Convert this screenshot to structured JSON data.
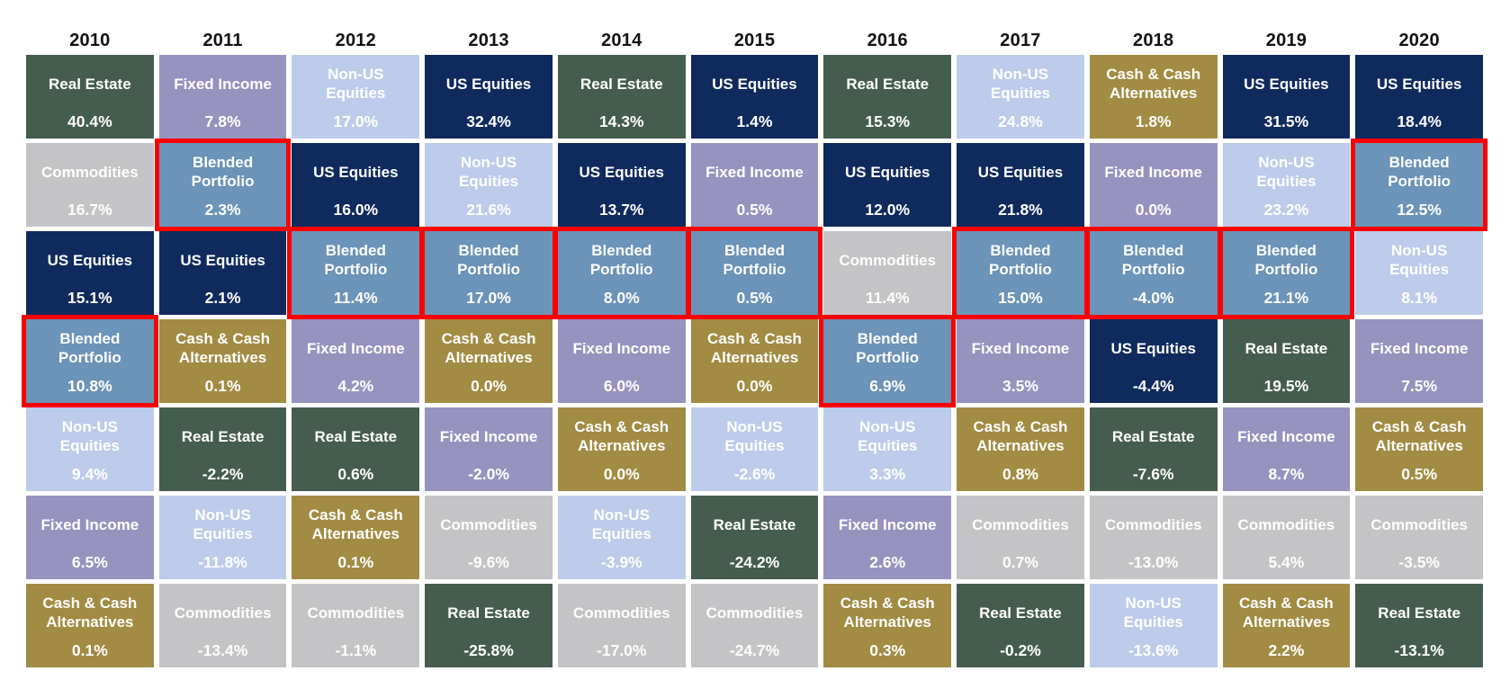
{
  "chart_data": {
    "type": "table",
    "description": "Annual asset class total returns quilt chart, one ranked column per year; Blended Portfolio cells outlined in red",
    "years": [
      "2010",
      "2011",
      "2012",
      "2013",
      "2014",
      "2015",
      "2016",
      "2017",
      "2018",
      "2019",
      "2020"
    ],
    "legend_position": "none",
    "grid": false,
    "asset_colors": {
      "Real Estate": "#455d4f",
      "Fixed Income": "#9793bf",
      "Non-US Equities": "#bdccea",
      "US Equities": "#0f2a5c",
      "Commodities": "#c4c3c6",
      "Cash & Cash Alternatives": "#a28c43",
      "Blended Portfolio": "#6c93b8"
    },
    "text_color": "#ffffff",
    "year_label_color": "#121212",
    "highlight_border_color": "#fb0000",
    "columns": [
      {
        "year": "2010",
        "cells": [
          {
            "asset": "Real Estate",
            "value": 40.4,
            "label": "40.4%",
            "highlighted": false
          },
          {
            "asset": "Commodities",
            "value": 16.7,
            "label": "16.7%",
            "highlighted": false
          },
          {
            "asset": "US Equities",
            "value": 15.1,
            "label": "15.1%",
            "highlighted": false
          },
          {
            "asset": "Blended Portfolio",
            "value": 10.8,
            "label": "10.8%",
            "highlighted": true
          },
          {
            "asset": "Non-US Equities",
            "value": 9.4,
            "label": "9.4%",
            "highlighted": false
          },
          {
            "asset": "Fixed Income",
            "value": 6.5,
            "label": "6.5%",
            "highlighted": false
          },
          {
            "asset": "Cash & Cash Alternatives",
            "value": 0.1,
            "label": "0.1%",
            "highlighted": false
          }
        ]
      },
      {
        "year": "2011",
        "cells": [
          {
            "asset": "Fixed Income",
            "value": 7.8,
            "label": "7.8%",
            "highlighted": false
          },
          {
            "asset": "Blended Portfolio",
            "value": 2.3,
            "label": "2.3%",
            "highlighted": true
          },
          {
            "asset": "US Equities",
            "value": 2.1,
            "label": "2.1%",
            "highlighted": false
          },
          {
            "asset": "Cash & Cash Alternatives",
            "value": 0.1,
            "label": "0.1%",
            "highlighted": false
          },
          {
            "asset": "Real Estate",
            "value": -2.2,
            "label": "-2.2%",
            "highlighted": false
          },
          {
            "asset": "Non-US Equities",
            "value": -11.8,
            "label": "-11.8%",
            "highlighted": false
          },
          {
            "asset": "Commodities",
            "value": -13.4,
            "label": "-13.4%",
            "highlighted": false
          }
        ]
      },
      {
        "year": "2012",
        "cells": [
          {
            "asset": "Non-US Equities",
            "value": 17.0,
            "label": "17.0%",
            "highlighted": false
          },
          {
            "asset": "US Equities",
            "value": 16.0,
            "label": "16.0%",
            "highlighted": false
          },
          {
            "asset": "Blended Portfolio",
            "value": 11.4,
            "label": "11.4%",
            "highlighted": true
          },
          {
            "asset": "Fixed Income",
            "value": 4.2,
            "label": "4.2%",
            "highlighted": false
          },
          {
            "asset": "Real Estate",
            "value": 0.6,
            "label": "0.6%",
            "highlighted": false
          },
          {
            "asset": "Cash & Cash Alternatives",
            "value": 0.1,
            "label": "0.1%",
            "highlighted": false
          },
          {
            "asset": "Commodities",
            "value": -1.1,
            "label": "-1.1%",
            "highlighted": false
          }
        ]
      },
      {
        "year": "2013",
        "cells": [
          {
            "asset": "US Equities",
            "value": 32.4,
            "label": "32.4%",
            "highlighted": false
          },
          {
            "asset": "Non-US Equities",
            "value": 21.6,
            "label": "21.6%",
            "highlighted": false
          },
          {
            "asset": "Blended Portfolio",
            "value": 17.0,
            "label": "17.0%",
            "highlighted": true
          },
          {
            "asset": "Cash & Cash Alternatives",
            "value": 0.0,
            "label": "0.0%",
            "highlighted": false
          },
          {
            "asset": "Fixed Income",
            "value": -2.0,
            "label": "-2.0%",
            "highlighted": false
          },
          {
            "asset": "Commodities",
            "value": -9.6,
            "label": "-9.6%",
            "highlighted": false
          },
          {
            "asset": "Real Estate",
            "value": -25.8,
            "label": "-25.8%",
            "highlighted": false
          }
        ]
      },
      {
        "year": "2014",
        "cells": [
          {
            "asset": "Real Estate",
            "value": 14.3,
            "label": "14.3%",
            "highlighted": false
          },
          {
            "asset": "US Equities",
            "value": 13.7,
            "label": "13.7%",
            "highlighted": false
          },
          {
            "asset": "Blended Portfolio",
            "value": 8.0,
            "label": "8.0%",
            "highlighted": true
          },
          {
            "asset": "Fixed Income",
            "value": 6.0,
            "label": "6.0%",
            "highlighted": false
          },
          {
            "asset": "Cash & Cash Alternatives",
            "value": 0.0,
            "label": "0.0%",
            "highlighted": false
          },
          {
            "asset": "Non-US Equities",
            "value": -3.9,
            "label": "-3.9%",
            "highlighted": false
          },
          {
            "asset": "Commodities",
            "value": -17.0,
            "label": "-17.0%",
            "highlighted": false
          }
        ]
      },
      {
        "year": "2015",
        "cells": [
          {
            "asset": "US Equities",
            "value": 1.4,
            "label": "1.4%",
            "highlighted": false
          },
          {
            "asset": "Fixed Income",
            "value": 0.5,
            "label": "0.5%",
            "highlighted": false
          },
          {
            "asset": "Blended Portfolio",
            "value": 0.5,
            "label": "0.5%",
            "highlighted": true
          },
          {
            "asset": "Cash & Cash Alternatives",
            "value": 0.0,
            "label": "0.0%",
            "highlighted": false
          },
          {
            "asset": "Non-US Equities",
            "value": -2.6,
            "label": "-2.6%",
            "highlighted": false
          },
          {
            "asset": "Real Estate",
            "value": -24.2,
            "label": "-24.2%",
            "highlighted": false
          },
          {
            "asset": "Commodities",
            "value": -24.7,
            "label": "-24.7%",
            "highlighted": false
          }
        ]
      },
      {
        "year": "2016",
        "cells": [
          {
            "asset": "Real Estate",
            "value": 15.3,
            "label": "15.3%",
            "highlighted": false
          },
          {
            "asset": "US Equities",
            "value": 12.0,
            "label": "12.0%",
            "highlighted": false
          },
          {
            "asset": "Commodities",
            "value": 11.4,
            "label": "11.4%",
            "highlighted": false
          },
          {
            "asset": "Blended Portfolio",
            "value": 6.9,
            "label": "6.9%",
            "highlighted": true
          },
          {
            "asset": "Non-US Equities",
            "value": 3.3,
            "label": "3.3%",
            "highlighted": false
          },
          {
            "asset": "Fixed Income",
            "value": 2.6,
            "label": "2.6%",
            "highlighted": false
          },
          {
            "asset": "Cash & Cash Alternatives",
            "value": 0.3,
            "label": "0.3%",
            "highlighted": false
          }
        ]
      },
      {
        "year": "2017",
        "cells": [
          {
            "asset": "Non-US Equities",
            "value": 24.8,
            "label": "24.8%",
            "highlighted": false
          },
          {
            "asset": "US Equities",
            "value": 21.8,
            "label": "21.8%",
            "highlighted": false
          },
          {
            "asset": "Blended Portfolio",
            "value": 15.0,
            "label": "15.0%",
            "highlighted": true
          },
          {
            "asset": "Fixed Income",
            "value": 3.5,
            "label": "3.5%",
            "highlighted": false
          },
          {
            "asset": "Cash & Cash Alternatives",
            "value": 0.8,
            "label": "0.8%",
            "highlighted": false
          },
          {
            "asset": "Commodities",
            "value": 0.7,
            "label": "0.7%",
            "highlighted": false
          },
          {
            "asset": "Real Estate",
            "value": -0.2,
            "label": "-0.2%",
            "highlighted": false
          }
        ]
      },
      {
        "year": "2018",
        "cells": [
          {
            "asset": "Cash & Cash Alternatives",
            "value": 1.8,
            "label": "1.8%",
            "highlighted": false
          },
          {
            "asset": "Fixed Income",
            "value": 0.0,
            "label": "0.0%",
            "highlighted": false
          },
          {
            "asset": "Blended Portfolio",
            "value": -4.0,
            "label": "-4.0%",
            "highlighted": true
          },
          {
            "asset": "US Equities",
            "value": -4.4,
            "label": "-4.4%",
            "highlighted": false
          },
          {
            "asset": "Real Estate",
            "value": -7.6,
            "label": "-7.6%",
            "highlighted": false
          },
          {
            "asset": "Commodities",
            "value": -13.0,
            "label": "-13.0%",
            "highlighted": false
          },
          {
            "asset": "Non-US Equities",
            "value": -13.6,
            "label": "-13.6%",
            "highlighted": false
          }
        ]
      },
      {
        "year": "2019",
        "cells": [
          {
            "asset": "US Equities",
            "value": 31.5,
            "label": "31.5%",
            "highlighted": false
          },
          {
            "asset": "Non-US Equities",
            "value": 23.2,
            "label": "23.2%",
            "highlighted": false
          },
          {
            "asset": "Blended Portfolio",
            "value": 21.1,
            "label": "21.1%",
            "highlighted": true
          },
          {
            "asset": "Real Estate",
            "value": 19.5,
            "label": "19.5%",
            "highlighted": false
          },
          {
            "asset": "Fixed Income",
            "value": 8.7,
            "label": "8.7%",
            "highlighted": false
          },
          {
            "asset": "Commodities",
            "value": 5.4,
            "label": "5.4%",
            "highlighted": false
          },
          {
            "asset": "Cash & Cash Alternatives",
            "value": 2.2,
            "label": "2.2%",
            "highlighted": false
          }
        ]
      },
      {
        "year": "2020",
        "cells": [
          {
            "asset": "US Equities",
            "value": 18.4,
            "label": "18.4%",
            "highlighted": false
          },
          {
            "asset": "Blended Portfolio",
            "value": 12.5,
            "label": "12.5%",
            "highlighted": true
          },
          {
            "asset": "Non-US Equities",
            "value": 8.1,
            "label": "8.1%",
            "highlighted": false
          },
          {
            "asset": "Fixed Income",
            "value": 7.5,
            "label": "7.5%",
            "highlighted": false
          },
          {
            "asset": "Cash & Cash Alternatives",
            "value": 0.5,
            "label": "0.5%",
            "highlighted": false
          },
          {
            "asset": "Commodities",
            "value": -3.5,
            "label": "-3.5%",
            "highlighted": false
          },
          {
            "asset": "Real Estate",
            "value": -13.1,
            "label": "-13.1%",
            "highlighted": false
          }
        ]
      }
    ]
  }
}
